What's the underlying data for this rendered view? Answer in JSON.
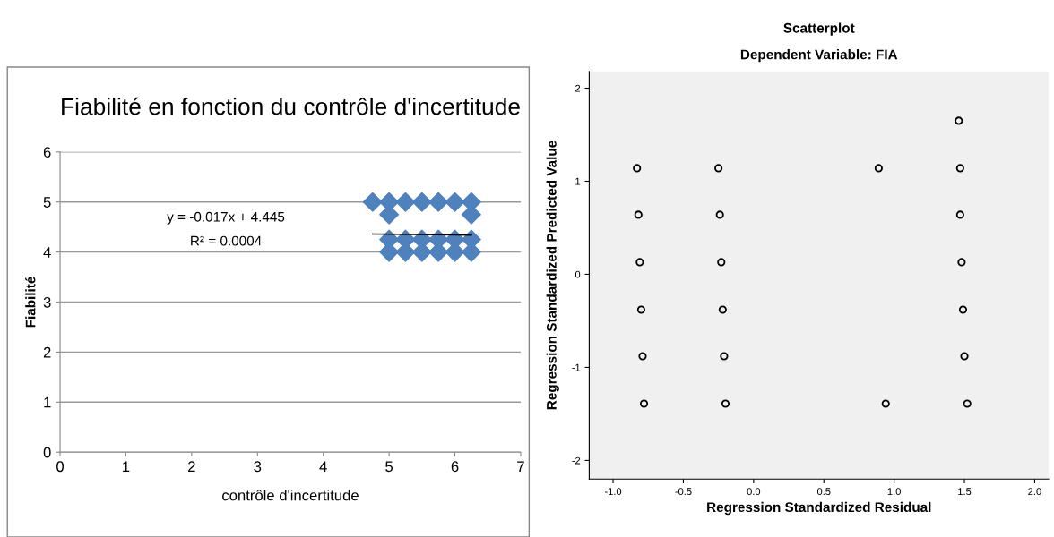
{
  "chart_data": [
    {
      "type": "scatter",
      "title": "Fiabilité en fonction du contrôle d'incertitude",
      "xlabel": "contrôle d'incertitude",
      "ylabel": "Fiabilité",
      "annotations": [
        "y = -0.017x + 4.445",
        "R² = 0.0004"
      ],
      "series": [
        {
          "color": "#4f81bd",
          "marker": "diamond",
          "x": [
            4.75,
            5,
            5.25,
            5.5,
            5.75,
            6,
            6.25,
            5,
            6.25,
            5,
            5.25,
            5.5,
            5.75,
            6,
            6.25,
            5,
            5.25,
            5.5,
            5.75,
            6,
            6.25
          ],
          "values": [
            5,
            5,
            5,
            5,
            5,
            5,
            5,
            4.75,
            4.75,
            4.25,
            4.25,
            4.25,
            4.25,
            4.25,
            4.25,
            4,
            4,
            4,
            4,
            4,
            4
          ]
        },
        {
          "type": "line",
          "color": "#000000",
          "marker": "none",
          "x": [
            4.75,
            6.25
          ],
          "values": [
            4.36,
            4.34
          ]
        }
      ],
      "xlim": [
        0,
        7
      ],
      "xticks": [
        0,
        1,
        2,
        3,
        4,
        5,
        6,
        7
      ],
      "ylim": [
        0,
        6
      ],
      "yticks": [
        0,
        1,
        2,
        3,
        4,
        5,
        6
      ],
      "grid": "y"
    },
    {
      "type": "scatter",
      "title": "Scatterplot",
      "subtitle": "Dependent Variable: FIA",
      "xlabel": "Regression Standardized Residual",
      "ylabel": "Regression Standardized Predicted Value",
      "series": [
        {
          "color": "#000000",
          "marker": "circle",
          "x": [
            -0.83,
            -0.82,
            -0.81,
            -0.8,
            -0.79,
            -0.78,
            -0.25,
            -0.24,
            -0.23,
            -0.22,
            -0.21,
            -0.2,
            0.89,
            0.94,
            1.46,
            1.47,
            1.47,
            1.48,
            1.49,
            1.5,
            1.52
          ],
          "values": [
            1.14,
            0.64,
            0.13,
            -0.38,
            -0.88,
            -1.39,
            1.14,
            0.64,
            0.13,
            -0.38,
            -0.88,
            -1.39,
            1.14,
            -1.39,
            1.65,
            1.14,
            0.64,
            0.13,
            -0.38,
            -0.88,
            -1.39
          ]
        }
      ],
      "xlim": [
        -1.17,
        2.1
      ],
      "xticks": [
        {
          "value": -1,
          "label": "-1.0"
        },
        {
          "value": -0.5,
          "label": "-0.5"
        },
        {
          "value": 0,
          "label": "0.0"
        },
        {
          "value": 0.5,
          "label": "0.5"
        },
        {
          "value": 1,
          "label": "1.0"
        },
        {
          "value": 1.5,
          "label": "1.5"
        },
        {
          "value": 2,
          "label": "2.0"
        }
      ],
      "ylim": [
        -2.2,
        2.18
      ],
      "yticks": [
        {
          "value": -2,
          "label": "-2"
        },
        {
          "value": -1,
          "label": "-1"
        },
        0,
        1,
        2
      ],
      "grid": false
    }
  ]
}
